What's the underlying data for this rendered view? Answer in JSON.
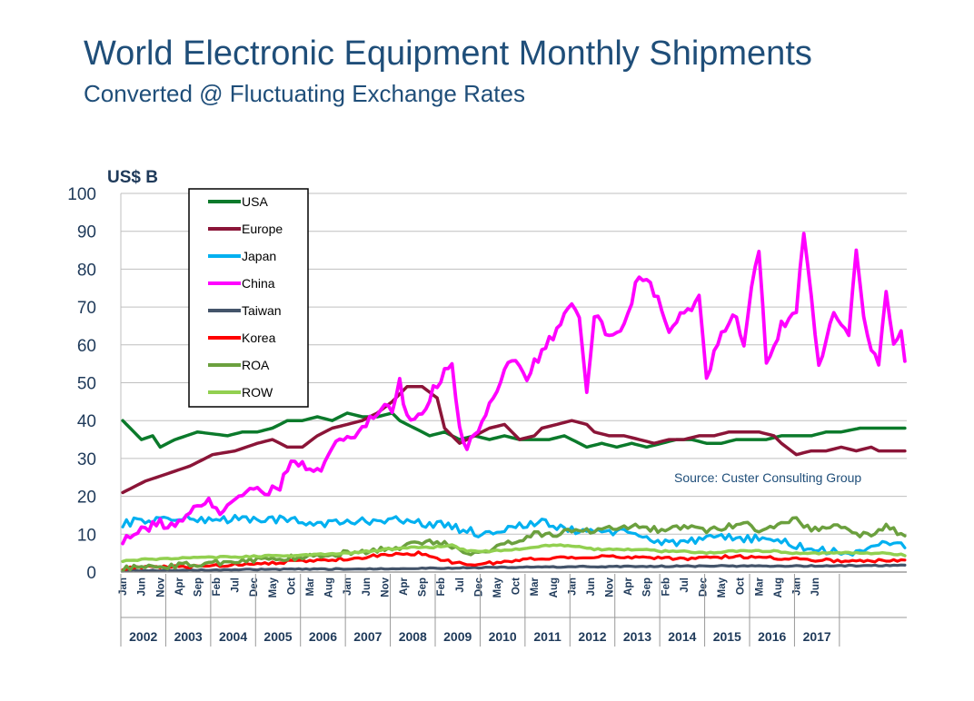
{
  "chart_data": {
    "type": "line",
    "title": "World Electronic Equipment  Monthly Shipments",
    "subtitle": "Converted @ Fluctuating Exchange Rates",
    "ylabel": "US$ B",
    "ylim": [
      0,
      100
    ],
    "yticks": [
      "0",
      "10",
      "20",
      "30",
      "40",
      "50",
      "60",
      "70",
      "80",
      "90",
      "100"
    ],
    "source": "Source: Custer Consulting Group",
    "x_start": "Jan 2002",
    "x_end": "Jun 2017",
    "month_tick_labels": [
      "Jan",
      "Jun",
      "Nov",
      "Apr",
      "Sep",
      "Feb",
      "Jul",
      "Dec",
      "May",
      "Oct",
      "Mar",
      "Aug",
      "Jan",
      "Jun",
      "Nov",
      "Apr",
      "Sep",
      "Feb",
      "Jul",
      "Dec",
      "May",
      "Oct",
      "Mar",
      "Aug",
      "Jan",
      "Jun",
      "Nov",
      "Apr",
      "Sep",
      "Feb",
      "Jul",
      "Dec",
      "May",
      "Oct",
      "Mar",
      "Aug",
      "Jan",
      "Jun"
    ],
    "years": [
      "2002",
      "2003",
      "2004",
      "2005",
      "2006",
      "2007",
      "2008",
      "2009",
      "2010",
      "2011",
      "2012",
      "2013",
      "2014",
      "2015",
      "2016",
      "2017"
    ],
    "series": [
      {
        "name": "USA",
        "color": "#0b7a2b",
        "width": 3.5,
        "keypoints": [
          [
            0,
            40
          ],
          [
            2,
            38
          ],
          [
            5,
            35
          ],
          [
            8,
            36
          ],
          [
            10,
            33
          ],
          [
            14,
            35
          ],
          [
            20,
            37
          ],
          [
            28,
            36
          ],
          [
            32,
            37
          ],
          [
            36,
            37
          ],
          [
            40,
            38
          ],
          [
            44,
            40
          ],
          [
            48,
            40
          ],
          [
            52,
            41
          ],
          [
            56,
            40
          ],
          [
            60,
            42
          ],
          [
            64,
            41
          ],
          [
            68,
            41
          ],
          [
            72,
            42
          ],
          [
            74,
            40
          ],
          [
            78,
            38
          ],
          [
            82,
            36
          ],
          [
            86,
            37
          ],
          [
            90,
            35
          ],
          [
            94,
            36
          ],
          [
            98,
            35
          ],
          [
            102,
            36
          ],
          [
            106,
            35
          ],
          [
            110,
            35
          ],
          [
            114,
            35
          ],
          [
            118,
            36
          ],
          [
            122,
            34
          ],
          [
            124,
            33
          ],
          [
            128,
            34
          ],
          [
            132,
            33
          ],
          [
            136,
            34
          ],
          [
            140,
            33
          ],
          [
            144,
            34
          ],
          [
            148,
            35
          ],
          [
            152,
            35
          ],
          [
            156,
            34
          ],
          [
            160,
            34
          ],
          [
            164,
            35
          ],
          [
            168,
            35
          ],
          [
            172,
            35
          ],
          [
            176,
            36
          ],
          [
            180,
            36
          ],
          [
            184,
            36
          ],
          [
            188,
            37
          ],
          [
            190,
            37
          ],
          [
            192,
            37
          ],
          [
            197,
            38
          ]
        ]
      },
      {
        "name": "Europe",
        "color": "#8b1538",
        "width": 3.5,
        "keypoints": [
          [
            0,
            21
          ],
          [
            6,
            24
          ],
          [
            12,
            26
          ],
          [
            18,
            28
          ],
          [
            24,
            31
          ],
          [
            30,
            32
          ],
          [
            36,
            34
          ],
          [
            40,
            35
          ],
          [
            44,
            33
          ],
          [
            48,
            33
          ],
          [
            52,
            36
          ],
          [
            56,
            38
          ],
          [
            60,
            39
          ],
          [
            64,
            40
          ],
          [
            68,
            42
          ],
          [
            72,
            45
          ],
          [
            76,
            49
          ],
          [
            80,
            49
          ],
          [
            84,
            46
          ],
          [
            86,
            38
          ],
          [
            90,
            34
          ],
          [
            94,
            36
          ],
          [
            98,
            38
          ],
          [
            102,
            39
          ],
          [
            106,
            35
          ],
          [
            110,
            36
          ],
          [
            112,
            38
          ],
          [
            116,
            39
          ],
          [
            120,
            40
          ],
          [
            124,
            39
          ],
          [
            126,
            37
          ],
          [
            130,
            36
          ],
          [
            134,
            36
          ],
          [
            138,
            35
          ],
          [
            142,
            34
          ],
          [
            146,
            35
          ],
          [
            150,
            35
          ],
          [
            154,
            36
          ],
          [
            158,
            36
          ],
          [
            162,
            37
          ],
          [
            166,
            37
          ],
          [
            170,
            37
          ],
          [
            174,
            36
          ],
          [
            176,
            34
          ],
          [
            180,
            31
          ],
          [
            184,
            32
          ],
          [
            188,
            32
          ],
          [
            192,
            33
          ],
          [
            196,
            32
          ],
          [
            200,
            33
          ],
          [
            202,
            32
          ],
          [
            209,
            32
          ]
        ]
      },
      {
        "name": "Japan",
        "color": "#00b0f0",
        "width": 3.2,
        "keypoints": [
          [
            0,
            13
          ],
          [
            10,
            14
          ],
          [
            20,
            14
          ],
          [
            30,
            14
          ],
          [
            40,
            14
          ],
          [
            50,
            13
          ],
          [
            60,
            13
          ],
          [
            70,
            14
          ],
          [
            80,
            13
          ],
          [
            88,
            12
          ],
          [
            96,
            10
          ],
          [
            104,
            12
          ],
          [
            112,
            13
          ],
          [
            120,
            11
          ],
          [
            128,
            11
          ],
          [
            136,
            10
          ],
          [
            144,
            8
          ],
          [
            152,
            8
          ],
          [
            160,
            9
          ],
          [
            168,
            9
          ],
          [
            176,
            8
          ],
          [
            184,
            6
          ],
          [
            192,
            5
          ],
          [
            200,
            6
          ],
          [
            205,
            8
          ],
          [
            209,
            7
          ]
        ],
        "noise": 2.2
      },
      {
        "name": "China",
        "color": "#ff00ff",
        "width": 3.8,
        "keypoints": [
          [
            0,
            9
          ],
          [
            6,
            11
          ],
          [
            10,
            13
          ],
          [
            14,
            12
          ],
          [
            18,
            15
          ],
          [
            22,
            19
          ],
          [
            26,
            16
          ],
          [
            30,
            20
          ],
          [
            34,
            22
          ],
          [
            38,
            21
          ],
          [
            42,
            23
          ],
          [
            46,
            30
          ],
          [
            50,
            26
          ],
          [
            54,
            28
          ],
          [
            58,
            35
          ],
          [
            62,
            36
          ],
          [
            66,
            40
          ],
          [
            70,
            44
          ],
          [
            72,
            42
          ],
          [
            74,
            50
          ],
          [
            76,
            40
          ],
          [
            80,
            42
          ],
          [
            84,
            50
          ],
          [
            88,
            56
          ],
          [
            90,
            38
          ],
          [
            92,
            33
          ],
          [
            96,
            40
          ],
          [
            100,
            48
          ],
          [
            104,
            56
          ],
          [
            108,
            52
          ],
          [
            112,
            58
          ],
          [
            116,
            64
          ],
          [
            120,
            70
          ],
          [
            122,
            67
          ],
          [
            124,
            46
          ],
          [
            126,
            68
          ],
          [
            130,
            62
          ],
          [
            134,
            66
          ],
          [
            138,
            78
          ],
          [
            142,
            74
          ],
          [
            146,
            64
          ],
          [
            150,
            68
          ],
          [
            154,
            72
          ],
          [
            156,
            52
          ],
          [
            160,
            62
          ],
          [
            164,
            68
          ],
          [
            166,
            60
          ],
          [
            168,
            74
          ],
          [
            170,
            86
          ],
          [
            172,
            55
          ],
          [
            176,
            65
          ],
          [
            180,
            70
          ],
          [
            182,
            89
          ],
          [
            186,
            55
          ],
          [
            190,
            68
          ],
          [
            194,
            62
          ],
          [
            196,
            84
          ],
          [
            198,
            66
          ],
          [
            200,
            58
          ],
          [
            202,
            55
          ],
          [
            204,
            75
          ],
          [
            206,
            60
          ],
          [
            208,
            63
          ],
          [
            209,
            56
          ]
        ],
        "noise": 3.0
      },
      {
        "name": "Taiwan",
        "color": "#44546a",
        "width": 3.2,
        "keypoints": [
          [
            0,
            0.4
          ],
          [
            20,
            0.5
          ],
          [
            40,
            0.7
          ],
          [
            60,
            0.8
          ],
          [
            80,
            1.0
          ],
          [
            100,
            1.2
          ],
          [
            120,
            1.4
          ],
          [
            140,
            1.5
          ],
          [
            160,
            1.6
          ],
          [
            180,
            1.6
          ],
          [
            200,
            1.7
          ],
          [
            209,
            1.8
          ]
        ],
        "noise": 0.3
      },
      {
        "name": "Korea",
        "color": "#ff0000",
        "width": 3.2,
        "keypoints": [
          [
            0,
            1
          ],
          [
            10,
            1.3
          ],
          [
            20,
            1.5
          ],
          [
            30,
            2
          ],
          [
            40,
            2.5
          ],
          [
            50,
            3
          ],
          [
            60,
            3.5
          ],
          [
            70,
            4.5
          ],
          [
            80,
            5
          ],
          [
            86,
            3
          ],
          [
            92,
            2
          ],
          [
            100,
            2.5
          ],
          [
            110,
            3.5
          ],
          [
            120,
            4
          ],
          [
            130,
            4
          ],
          [
            140,
            4
          ],
          [
            150,
            3.5
          ],
          [
            160,
            4
          ],
          [
            170,
            4
          ],
          [
            180,
            3.5
          ],
          [
            190,
            3
          ],
          [
            200,
            3
          ],
          [
            209,
            3
          ]
        ],
        "noise": 0.8
      },
      {
        "name": "ROA",
        "color": "#6ba03e",
        "width": 3.5,
        "keypoints": [
          [
            0,
            1
          ],
          [
            10,
            1.5
          ],
          [
            20,
            2
          ],
          [
            30,
            3
          ],
          [
            40,
            3.5
          ],
          [
            50,
            4
          ],
          [
            60,
            5
          ],
          [
            70,
            6
          ],
          [
            76,
            7
          ],
          [
            82,
            8
          ],
          [
            88,
            7
          ],
          [
            92,
            5
          ],
          [
            98,
            6
          ],
          [
            104,
            8
          ],
          [
            110,
            10
          ],
          [
            116,
            10
          ],
          [
            120,
            11
          ],
          [
            126,
            11
          ],
          [
            132,
            12
          ],
          [
            138,
            12
          ],
          [
            144,
            11
          ],
          [
            150,
            12
          ],
          [
            156,
            11
          ],
          [
            162,
            12
          ],
          [
            166,
            13
          ],
          [
            170,
            11
          ],
          [
            176,
            13
          ],
          [
            180,
            14
          ],
          [
            184,
            11
          ],
          [
            188,
            12
          ],
          [
            192,
            12
          ],
          [
            196,
            10
          ],
          [
            200,
            10
          ],
          [
            204,
            12
          ],
          [
            206,
            11
          ],
          [
            209,
            9
          ]
        ],
        "noise": 1.5
      },
      {
        "name": "ROW",
        "color": "#92d050",
        "width": 3.5,
        "keypoints": [
          [
            0,
            3
          ],
          [
            10,
            3.5
          ],
          [
            20,
            3.8
          ],
          [
            30,
            4
          ],
          [
            40,
            4.3
          ],
          [
            50,
            4.5
          ],
          [
            60,
            5
          ],
          [
            66,
            5.5
          ],
          [
            70,
            6
          ],
          [
            76,
            6.5
          ],
          [
            82,
            6.5
          ],
          [
            88,
            7
          ],
          [
            92,
            5.5
          ],
          [
            98,
            5.5
          ],
          [
            104,
            6
          ],
          [
            110,
            6.5
          ],
          [
            114,
            7
          ],
          [
            120,
            7
          ],
          [
            126,
            6
          ],
          [
            132,
            6
          ],
          [
            138,
            6
          ],
          [
            144,
            5.5
          ],
          [
            150,
            5.5
          ],
          [
            156,
            5
          ],
          [
            162,
            5.5
          ],
          [
            168,
            5.5
          ],
          [
            174,
            5.5
          ],
          [
            180,
            5
          ],
          [
            186,
            5
          ],
          [
            192,
            5
          ],
          [
            198,
            5
          ],
          [
            204,
            5
          ],
          [
            209,
            4.5
          ]
        ],
        "noise": 0.4
      }
    ]
  }
}
